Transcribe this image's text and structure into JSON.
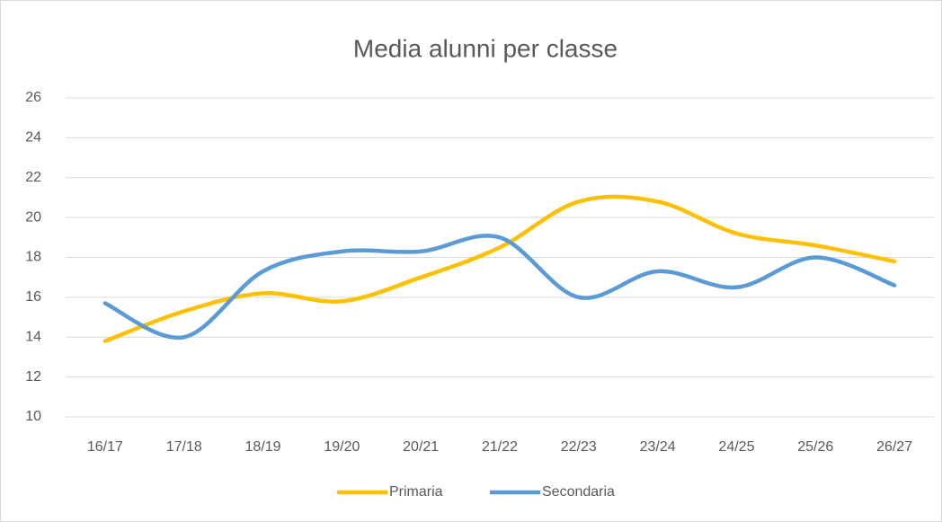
{
  "chart_data": {
    "type": "line",
    "title": "Media alunni per classe",
    "categories": [
      "16/17",
      "17/18",
      "18/19",
      "19/20",
      "20/21",
      "21/22",
      "22/23",
      "23/24",
      "24/25",
      "25/26",
      "26/27"
    ],
    "series": [
      {
        "name": "Primaria",
        "color": "#ffc000",
        "values": [
          13.8,
          15.3,
          16.2,
          15.8,
          17.0,
          18.5,
          20.8,
          20.8,
          19.2,
          18.6,
          17.8
        ]
      },
      {
        "name": "Secondaria",
        "color": "#5b9bd5",
        "values": [
          15.7,
          14.0,
          17.3,
          18.3,
          18.3,
          19.0,
          16.0,
          17.3,
          16.5,
          18.0,
          16.6
        ]
      }
    ],
    "ylim": [
      10,
      26
    ],
    "yticks": [
      10,
      12,
      14,
      16,
      18,
      20,
      22,
      24,
      26
    ],
    "grid": true,
    "smooth": true,
    "legend": "bottom"
  }
}
